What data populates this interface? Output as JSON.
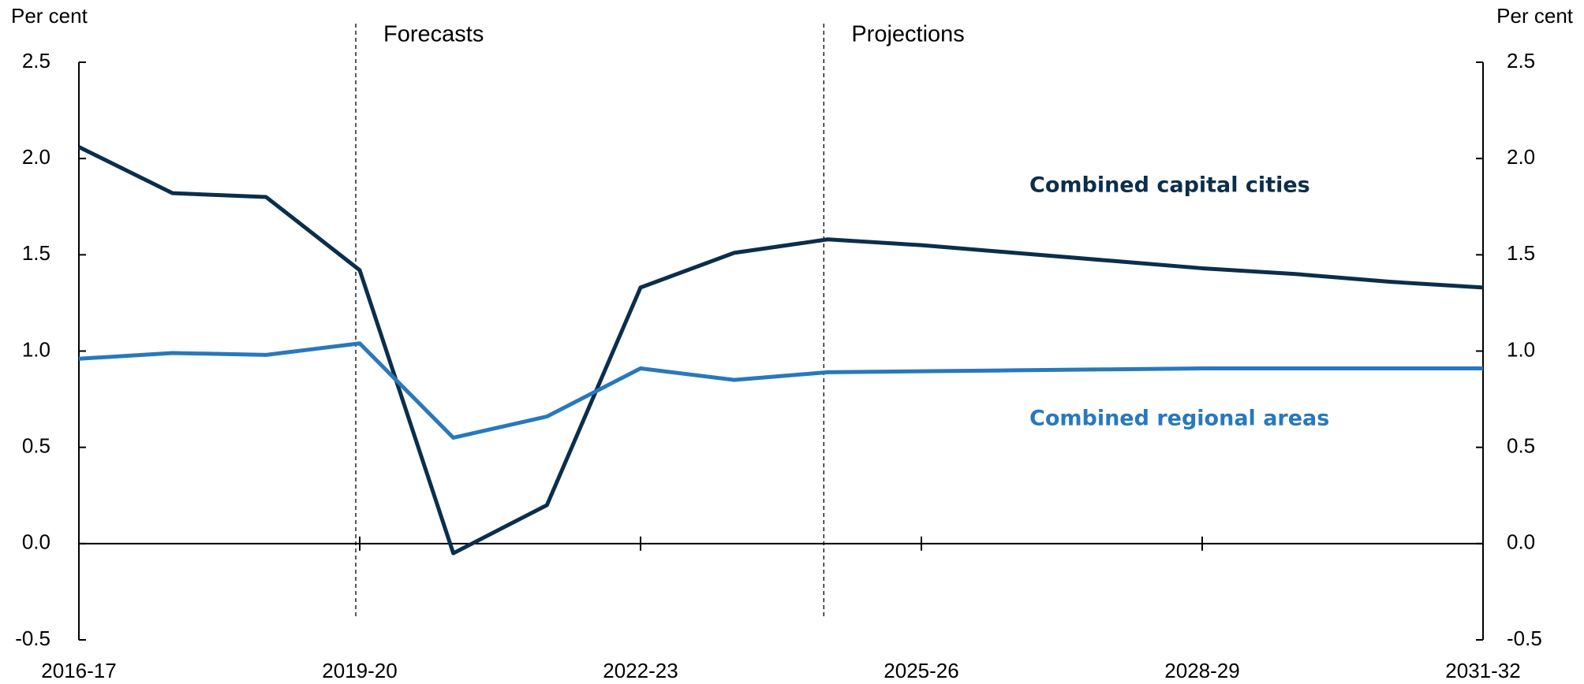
{
  "chart_data": {
    "type": "line",
    "y_label": "Per cent",
    "y2_label": "Per cent",
    "annotations": [
      "Forecasts",
      "Projections"
    ],
    "categories": [
      "2016-17",
      null,
      null,
      "2019-20",
      null,
      null,
      "2022-23",
      null,
      null,
      "2025-26",
      null,
      null,
      "2028-29",
      null,
      null,
      "2031-32"
    ],
    "series": [
      {
        "name": "Combined capital cities",
        "color": "#0b2e4c",
        "values": [
          2.06,
          1.82,
          1.8,
          1.42,
          -0.05,
          0.2,
          1.33,
          1.51,
          1.58,
          1.55,
          1.51,
          1.47,
          1.43,
          1.4,
          1.36,
          1.33
        ]
      },
      {
        "name": "Combined regional areas",
        "color": "#2878bd",
        "values": [
          0.96,
          0.99,
          0.98,
          1.04,
          0.55,
          0.66,
          0.91,
          0.85,
          0.89,
          0.895,
          0.9,
          0.905,
          0.91,
          0.91,
          0.91,
          0.91
        ]
      }
    ],
    "ylim": [
      -0.5,
      2.5
    ],
    "yticks": [
      -0.5,
      {
        "value": 0,
        "label": "0.0"
      },
      0.5,
      {
        "value": 1,
        "label": "1.0"
      },
      1.5,
      {
        "value": 2,
        "label": "2.0"
      },
      2.5
    ],
    "y2lim": [
      -0.5,
      2.5
    ],
    "y2ticks": [
      -0.5,
      {
        "value": 0,
        "label": "0.0"
      },
      0.5,
      {
        "value": 1,
        "label": "1.0"
      },
      1.5,
      {
        "value": 2,
        "label": "2.0"
      },
      2.5
    ]
  }
}
